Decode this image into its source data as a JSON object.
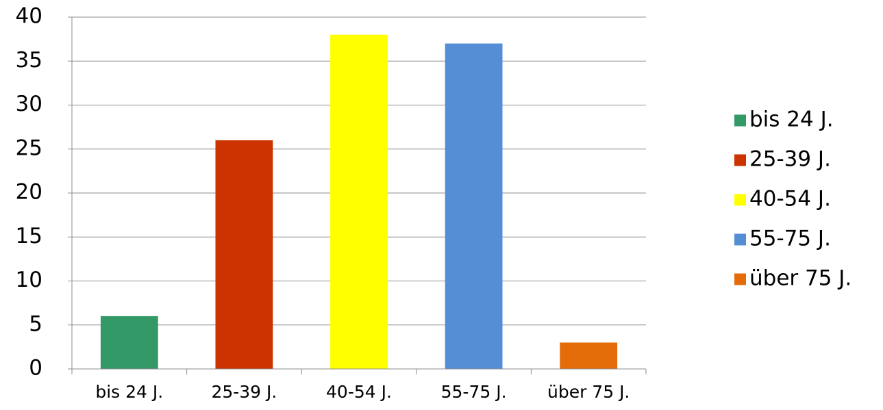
{
  "chart_data": {
    "type": "bar",
    "categories": [
      "bis 24 J.",
      "25-39 J.",
      "40-54 J.",
      "55-75 J.",
      "über 75 J."
    ],
    "values": [
      6,
      26,
      38,
      37,
      3
    ],
    "colors": [
      "#339966",
      "#cc3300",
      "#ffff00",
      "#558ed5",
      "#e36c09"
    ],
    "ylim": [
      0,
      40
    ],
    "yticks": [
      "0",
      "5",
      "10",
      "15",
      "20",
      "25",
      "30",
      "35",
      "40"
    ],
    "grid": true,
    "legend_position": "right",
    "legend": [
      "bis 24 J.",
      "25-39 J.",
      "40-54 J.",
      "55-75 J.",
      "über 75 J."
    ]
  }
}
